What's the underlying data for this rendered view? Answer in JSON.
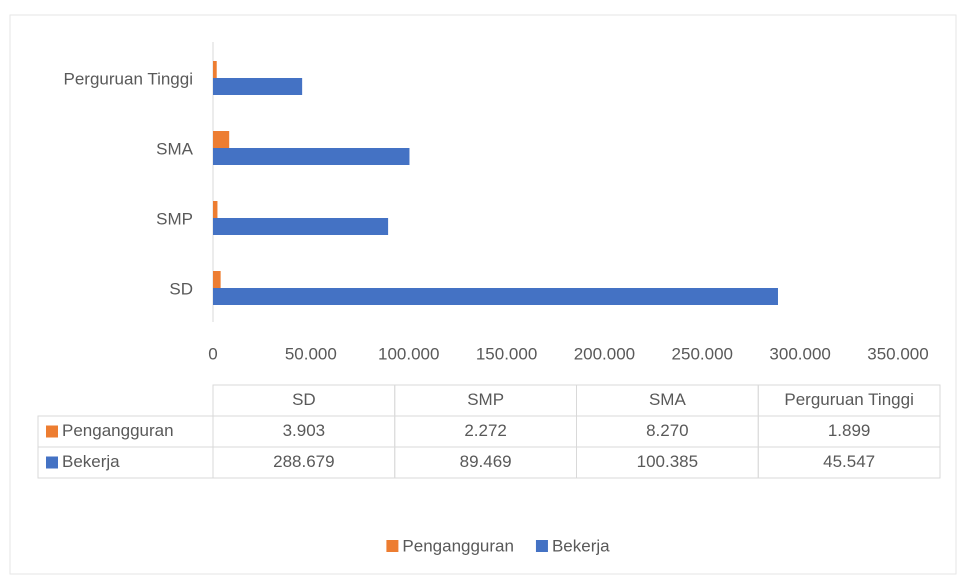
{
  "chart_data": {
    "type": "bar",
    "orientation": "horizontal",
    "categories": [
      "SD",
      "SMP",
      "SMA",
      "Perguruan Tinggi"
    ],
    "series": [
      {
        "name": "Pengangguran",
        "color": "#ED7D31",
        "values": [
          3903,
          2272,
          8270,
          1899
        ],
        "value_labels": [
          "3.903",
          "2.272",
          "8.270",
          "1.899"
        ]
      },
      {
        "name": "Bekerja",
        "color": "#4472C4",
        "values": [
          288679,
          89469,
          100385,
          45547
        ],
        "value_labels": [
          "288.679",
          "89.469",
          "100.385",
          "45.547"
        ]
      }
    ],
    "xlim": [
      0,
      350000
    ],
    "xticks": [
      0,
      {
        "value": 50000,
        "label": "50.000"
      },
      {
        "value": 100000,
        "label": "100.000"
      },
      {
        "value": 150000,
        "label": "150.000"
      },
      {
        "value": 200000,
        "label": "200.000"
      },
      {
        "value": 250000,
        "label": "250.000"
      },
      {
        "value": 300000,
        "label": "300.000"
      },
      {
        "value": 350000,
        "label": "350.000"
      }
    ],
    "grid": false,
    "data_table": true,
    "legend": "bottom"
  }
}
